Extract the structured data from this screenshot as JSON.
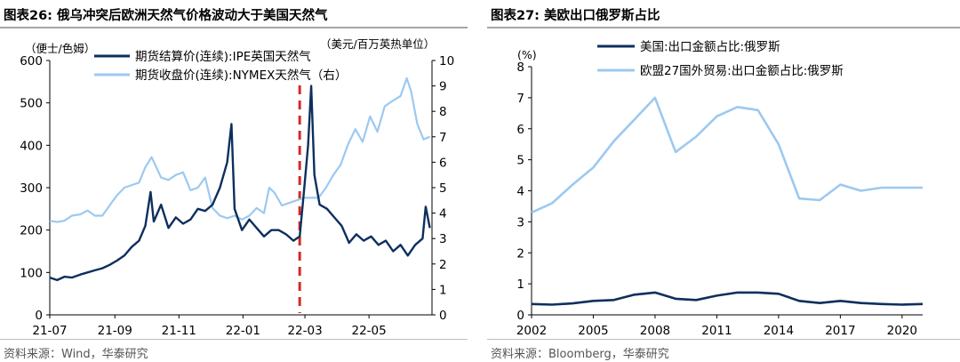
{
  "colors": {
    "dark": "#0d2f5e",
    "light": "#9cc9f0",
    "marker": "#d42a26",
    "axis": "#000000"
  },
  "left_panel": {
    "title": "图表26:  俄乌冲突后欧洲天然气价格波动大于美国天然气",
    "source": "资料来源：Wind，华泰研究",
    "y_left_unit": "（便士/色姆）",
    "y_right_unit": "（美元/百万英热单位）"
  },
  "right_panel": {
    "title": "图表27:  美欧出口俄罗斯占比",
    "source": "资料来源：Bloomberg，华泰研究",
    "y_unit": "(%)"
  },
  "chart_data": [
    {
      "type": "line",
      "title": "俄乌冲突后欧洲天然气价格波动大于美国天然气",
      "x_tick_labels": [
        "21-07",
        "21-09",
        "21-11",
        "22-01",
        "22-03",
        "22-05"
      ],
      "x_range": [
        "2021-07-01",
        "2022-06-30"
      ],
      "ylim_left": [
        0,
        600
      ],
      "yticks_left": [
        0,
        100,
        200,
        300,
        400,
        500,
        600
      ],
      "ylim_right": [
        0,
        10
      ],
      "yticks_right": [
        0,
        1,
        2,
        3,
        4,
        5,
        6,
        7,
        8,
        9,
        10
      ],
      "y_left_label": "（便士/色姆）",
      "y_right_label": "（美元/百万英热单位）",
      "legend_position": "top",
      "marker_line": {
        "date": "2022-02-24",
        "style": "red dashed vertical"
      },
      "series": [
        {
          "name": "期货结算价(连续):IPE英国天然气",
          "axis": "left",
          "color": "#0d2f5e",
          "points": [
            [
              "2021-07-01",
              88
            ],
            [
              "2021-07-08",
              82
            ],
            [
              "2021-07-15",
              90
            ],
            [
              "2021-07-22",
              88
            ],
            [
              "2021-07-30",
              95
            ],
            [
              "2021-08-06",
              100
            ],
            [
              "2021-08-13",
              105
            ],
            [
              "2021-08-20",
              110
            ],
            [
              "2021-08-27",
              118
            ],
            [
              "2021-09-03",
              128
            ],
            [
              "2021-09-10",
              140
            ],
            [
              "2021-09-17",
              160
            ],
            [
              "2021-09-24",
              175
            ],
            [
              "2021-09-30",
              210
            ],
            [
              "2021-10-05",
              290
            ],
            [
              "2021-10-08",
              220
            ],
            [
              "2021-10-15",
              260
            ],
            [
              "2021-10-22",
              205
            ],
            [
              "2021-10-29",
              230
            ],
            [
              "2021-11-05",
              215
            ],
            [
              "2021-11-12",
              225
            ],
            [
              "2021-11-19",
              250
            ],
            [
              "2021-11-26",
              245
            ],
            [
              "2021-12-03",
              260
            ],
            [
              "2021-12-10",
              300
            ],
            [
              "2021-12-17",
              360
            ],
            [
              "2021-12-21",
              450
            ],
            [
              "2021-12-24",
              250
            ],
            [
              "2021-12-31",
              200
            ],
            [
              "2022-01-07",
              225
            ],
            [
              "2022-01-14",
              205
            ],
            [
              "2022-01-21",
              185
            ],
            [
              "2022-01-28",
              200
            ],
            [
              "2022-02-04",
              200
            ],
            [
              "2022-02-11",
              190
            ],
            [
              "2022-02-18",
              175
            ],
            [
              "2022-02-24",
              185
            ],
            [
              "2022-02-28",
              290
            ],
            [
              "2022-03-04",
              400
            ],
            [
              "2022-03-07",
              540
            ],
            [
              "2022-03-10",
              330
            ],
            [
              "2022-03-15",
              260
            ],
            [
              "2022-03-22",
              250
            ],
            [
              "2022-03-29",
              230
            ],
            [
              "2022-04-05",
              210
            ],
            [
              "2022-04-12",
              170
            ],
            [
              "2022-04-19",
              190
            ],
            [
              "2022-04-26",
              175
            ],
            [
              "2022-05-03",
              185
            ],
            [
              "2022-05-10",
              165
            ],
            [
              "2022-05-17",
              175
            ],
            [
              "2022-05-24",
              150
            ],
            [
              "2022-05-31",
              165
            ],
            [
              "2022-06-07",
              140
            ],
            [
              "2022-06-14",
              165
            ],
            [
              "2022-06-21",
              180
            ],
            [
              "2022-06-24",
              255
            ],
            [
              "2022-06-28",
              205
            ]
          ]
        },
        {
          "name": "期货收盘价(连续):NYMEX天然气（右）",
          "axis": "right",
          "color": "#9cc9f0",
          "points": [
            [
              "2021-07-01",
              3.7
            ],
            [
              "2021-07-08",
              3.65
            ],
            [
              "2021-07-15",
              3.7
            ],
            [
              "2021-07-22",
              3.9
            ],
            [
              "2021-07-30",
              3.95
            ],
            [
              "2021-08-06",
              4.1
            ],
            [
              "2021-08-13",
              3.9
            ],
            [
              "2021-08-20",
              3.9
            ],
            [
              "2021-08-27",
              4.3
            ],
            [
              "2021-09-03",
              4.7
            ],
            [
              "2021-09-10",
              5.0
            ],
            [
              "2021-09-17",
              5.1
            ],
            [
              "2021-09-24",
              5.2
            ],
            [
              "2021-09-30",
              5.8
            ],
            [
              "2021-10-06",
              6.2
            ],
            [
              "2021-10-15",
              5.4
            ],
            [
              "2021-10-22",
              5.3
            ],
            [
              "2021-10-29",
              5.5
            ],
            [
              "2021-11-05",
              5.6
            ],
            [
              "2021-11-12",
              4.9
            ],
            [
              "2021-11-19",
              5.0
            ],
            [
              "2021-11-26",
              5.4
            ],
            [
              "2021-12-03",
              4.2
            ],
            [
              "2021-12-10",
              3.9
            ],
            [
              "2021-12-17",
              3.8
            ],
            [
              "2021-12-24",
              3.9
            ],
            [
              "2021-12-31",
              3.75
            ],
            [
              "2022-01-07",
              3.9
            ],
            [
              "2022-01-14",
              4.2
            ],
            [
              "2022-01-21",
              4.0
            ],
            [
              "2022-01-26",
              5.0
            ],
            [
              "2022-01-31",
              4.8
            ],
            [
              "2022-02-07",
              4.3
            ],
            [
              "2022-02-14",
              4.4
            ],
            [
              "2022-02-21",
              4.5
            ],
            [
              "2022-02-28",
              4.6
            ],
            [
              "2022-03-07",
              4.6
            ],
            [
              "2022-03-14",
              4.6
            ],
            [
              "2022-03-21",
              5.0
            ],
            [
              "2022-03-28",
              5.5
            ],
            [
              "2022-04-04",
              5.9
            ],
            [
              "2022-04-11",
              6.7
            ],
            [
              "2022-04-18",
              7.3
            ],
            [
              "2022-04-25",
              6.8
            ],
            [
              "2022-05-02",
              7.8
            ],
            [
              "2022-05-09",
              7.2
            ],
            [
              "2022-05-16",
              8.2
            ],
            [
              "2022-05-23",
              8.4
            ],
            [
              "2022-05-31",
              8.6
            ],
            [
              "2022-06-06",
              9.3
            ],
            [
              "2022-06-10",
              8.8
            ],
            [
              "2022-06-16",
              7.5
            ],
            [
              "2022-06-22",
              6.9
            ],
            [
              "2022-06-28",
              7.0
            ]
          ]
        }
      ]
    },
    {
      "type": "line",
      "title": "美欧出口俄罗斯占比",
      "xlim": [
        2002,
        2021
      ],
      "xticks": [
        2002,
        2005,
        2008,
        2011,
        2014,
        2017,
        2020
      ],
      "ylim": [
        0,
        8
      ],
      "yticks": [
        0,
        1,
        2,
        3,
        4,
        5,
        6,
        7,
        8
      ],
      "y_label": "(%)",
      "legend_position": "top",
      "series": [
        {
          "name": "美国:出口金额占比:俄罗斯",
          "color": "#0d2f5e",
          "x": [
            2002,
            2003,
            2004,
            2005,
            2006,
            2007,
            2008,
            2009,
            2010,
            2011,
            2012,
            2013,
            2014,
            2015,
            2016,
            2017,
            2018,
            2019,
            2020,
            2021
          ],
          "y": [
            0.35,
            0.33,
            0.37,
            0.45,
            0.48,
            0.65,
            0.72,
            0.52,
            0.48,
            0.62,
            0.72,
            0.72,
            0.68,
            0.45,
            0.38,
            0.45,
            0.38,
            0.35,
            0.33,
            0.35
          ]
        },
        {
          "name": "欧盟27国外贸易:出口金额占比:俄罗斯",
          "color": "#9cc9f0",
          "x": [
            2002,
            2003,
            2004,
            2005,
            2006,
            2007,
            2008,
            2009,
            2010,
            2011,
            2012,
            2013,
            2014,
            2015,
            2016,
            2017,
            2018,
            2019,
            2020,
            2021
          ],
          "y": [
            3.3,
            3.6,
            4.2,
            4.75,
            5.6,
            6.3,
            7.0,
            5.25,
            5.75,
            6.4,
            6.7,
            6.6,
            5.5,
            3.75,
            3.7,
            4.2,
            4.0,
            4.1,
            4.1,
            4.1
          ]
        }
      ]
    }
  ]
}
